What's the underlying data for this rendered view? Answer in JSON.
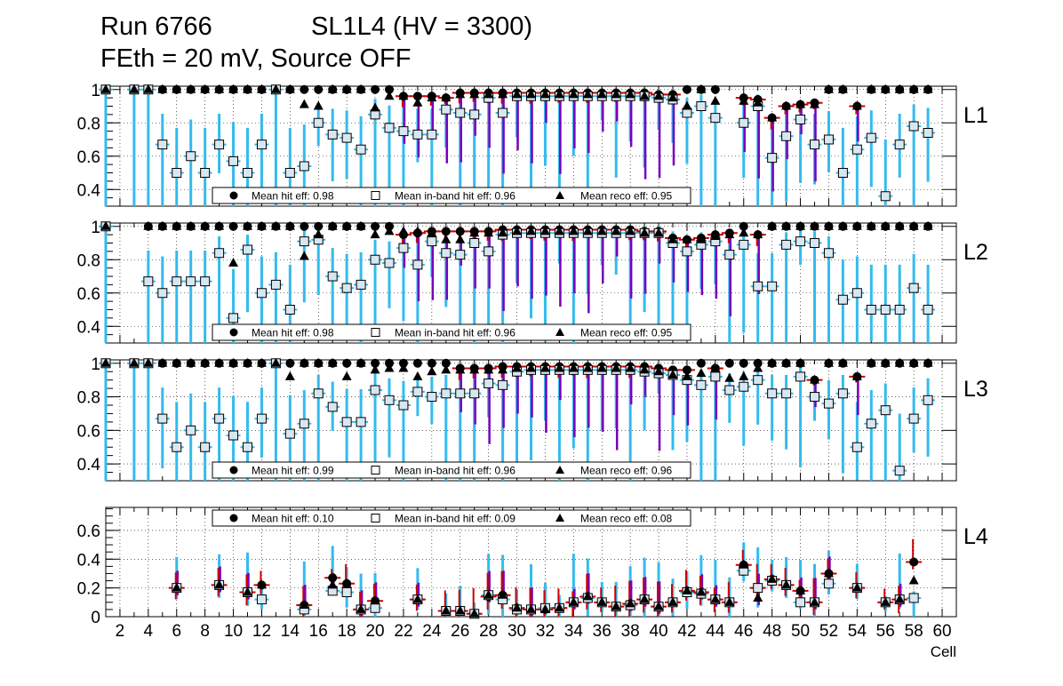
{
  "title": {
    "run": "Run 6766",
    "chamber": "SL1L4 (HV = 3300)",
    "conditions": "FEth = 20 mV, Source OFF"
  },
  "colors": {
    "hit": "#000000",
    "reco": "#000000",
    "band_err": "#33bbee",
    "mean_err": "#cc0000",
    "reco_err": "#7700bb",
    "grid": "#000000",
    "box_fill": "#d8e6f0"
  },
  "chart_data": [
    {
      "type": "scatter",
      "panel": "L1",
      "ylim": [
        0.3,
        1.02
      ],
      "yticks": [
        0.4,
        0.6,
        0.8,
        1
      ],
      "ytick_labels": [
        "0.4",
        "0.6",
        "0.8",
        "1"
      ],
      "legend": {
        "hit": "Mean hit  eff: 0.98",
        "band": "Mean in-band hit eff: 0.96",
        "reco": "Mean reco eff: 0.95"
      },
      "x": [
        1,
        3,
        4,
        5,
        6,
        7,
        8,
        9,
        10,
        11,
        12,
        13,
        14,
        15,
        16,
        17,
        18,
        19,
        20,
        21,
        22,
        23,
        24,
        25,
        26,
        27,
        28,
        29,
        30,
        31,
        32,
        33,
        34,
        35,
        36,
        37,
        38,
        39,
        40,
        41,
        42,
        43,
        44,
        46,
        47,
        48,
        49,
        50,
        51,
        52,
        53,
        54,
        55,
        56,
        57,
        58,
        59
      ],
      "series": [
        {
          "name": "Mean hit eff",
          "marker": "circle",
          "values": [
            1,
            1,
            1,
            1,
            1,
            1,
            1,
            1,
            1,
            1,
            1,
            1,
            1,
            1,
            1,
            1,
            1,
            1,
            1,
            1,
            0.96,
            0.96,
            0.96,
            0.95,
            0.98,
            0.98,
            0.98,
            0.98,
            0.98,
            0.98,
            0.98,
            0.98,
            0.98,
            0.98,
            0.98,
            0.98,
            0.98,
            0.98,
            0.97,
            0.97,
            1,
            1,
            1,
            0.95,
            0.94,
            0.83,
            0.9,
            0.91,
            0.92,
            1,
            1,
            0.9,
            1,
            1,
            1,
            1,
            1
          ]
        },
        {
          "name": "Mean in-band hit eff",
          "marker": "open-square",
          "values": [
            1,
            1,
            1,
            0.67,
            0.5,
            0.6,
            0.5,
            0.67,
            0.57,
            0.5,
            0.67,
            1,
            0.5,
            0.54,
            0.8,
            0.73,
            0.71,
            0.64,
            0.85,
            0.77,
            0.75,
            0.73,
            0.73,
            0.88,
            0.86,
            0.85,
            0.95,
            0.86,
            0.96,
            0.96,
            0.96,
            0.96,
            0.96,
            0.96,
            0.96,
            0.96,
            0.96,
            0.96,
            0.95,
            0.94,
            0.86,
            0.9,
            0.83,
            0.8,
            0.9,
            0.59,
            0.72,
            0.82,
            0.67,
            0.7,
            0.5,
            0.64,
            0.71,
            0.36,
            0.67,
            0.78,
            0.74
          ]
        },
        {
          "name": "Mean reco eff",
          "marker": "triangle",
          "values": [
            1,
            1,
            1,
            1,
            1,
            1,
            1,
            1,
            1,
            1,
            1,
            1,
            1,
            0.91,
            0.9,
            1,
            1,
            1,
            0.89,
            0.96,
            0.96,
            0.92,
            0.95,
            0.95,
            0.97,
            0.97,
            0.97,
            0.97,
            0.97,
            0.97,
            0.97,
            0.97,
            0.97,
            0.97,
            0.97,
            0.97,
            0.97,
            0.96,
            0.96,
            0.95,
            0.9,
            1,
            0.93,
            0.93,
            0.92,
            0.83,
            0.9,
            0.91,
            0.91,
            1,
            1,
            0.9,
            1,
            1,
            1,
            1,
            1
          ]
        }
      ]
    },
    {
      "type": "scatter",
      "panel": "L2",
      "ylim": [
        0.3,
        1.02
      ],
      "yticks": [
        0.4,
        0.6,
        0.8,
        1
      ],
      "ytick_labels": [
        "0.4",
        "0.6",
        "0.8",
        "1"
      ],
      "legend": {
        "hit": "Mean hit  eff: 0.98",
        "band": "Mean in-band hit eff: 0.96",
        "reco": "Mean reco eff: 0.95"
      },
      "x": [
        1,
        4,
        5,
        6,
        7,
        8,
        9,
        10,
        11,
        12,
        13,
        14,
        15,
        16,
        17,
        18,
        19,
        20,
        21,
        22,
        23,
        24,
        25,
        26,
        27,
        28,
        29,
        30,
        31,
        32,
        33,
        34,
        35,
        36,
        37,
        38,
        39,
        40,
        41,
        42,
        43,
        44,
        45,
        46,
        47,
        48,
        49,
        50,
        51,
        52,
        53,
        54,
        55,
        56,
        57,
        58,
        59
      ],
      "series": [
        {
          "name": "Mean hit eff",
          "marker": "circle",
          "values": [
            1,
            1,
            1,
            1,
            1,
            1,
            1,
            1,
            1,
            1,
            1,
            1,
            1,
            1,
            1,
            1,
            1,
            1,
            1,
            0.95,
            0.96,
            0.97,
            0.97,
            0.97,
            0.97,
            0.97,
            0.98,
            0.98,
            0.98,
            0.98,
            0.98,
            0.98,
            0.98,
            0.98,
            0.98,
            0.98,
            0.97,
            0.97,
            0.93,
            0.92,
            0.93,
            0.95,
            0.96,
            1,
            0.95,
            1,
            1,
            1,
            1,
            1,
            1,
            1,
            1,
            1,
            1,
            1,
            1
          ]
        },
        {
          "name": "Mean in-band hit eff",
          "marker": "open-square",
          "values": [
            1,
            0.67,
            0.6,
            0.67,
            0.67,
            0.67,
            0.84,
            0.45,
            0.86,
            0.6,
            0.65,
            0.5,
            0.91,
            0.92,
            0.7,
            0.63,
            0.65,
            0.8,
            0.78,
            0.87,
            0.77,
            0.91,
            0.84,
            0.83,
            0.9,
            0.85,
            0.95,
            0.96,
            0.96,
            0.96,
            0.96,
            0.96,
            0.96,
            0.96,
            0.96,
            0.96,
            0.96,
            0.96,
            0.9,
            0.85,
            0.89,
            0.91,
            0.83,
            0.89,
            0.64,
            0.64,
            0.89,
            0.91,
            0.9,
            0.84,
            0.56,
            0.6,
            0.5,
            0.5,
            0.5,
            0.63,
            0.5
          ]
        },
        {
          "name": "Mean reco eff",
          "marker": "triangle",
          "values": [
            1,
            1,
            1,
            1,
            1,
            1,
            1,
            0.78,
            1,
            1,
            1,
            1,
            0.82,
            0.95,
            1,
            1,
            1,
            0.95,
            0.97,
            0.97,
            0.97,
            0.96,
            0.92,
            0.92,
            0.96,
            0.96,
            0.96,
            0.97,
            0.97,
            0.97,
            0.97,
            0.97,
            0.97,
            0.97,
            0.97,
            0.97,
            0.96,
            0.96,
            0.92,
            0.92,
            0.92,
            0.94,
            0.95,
            0.96,
            0.95,
            1,
            1,
            1,
            1,
            1,
            1,
            1,
            1,
            1,
            1,
            1,
            1
          ]
        }
      ]
    },
    {
      "type": "scatter",
      "panel": "L3",
      "ylim": [
        0.3,
        1.02
      ],
      "yticks": [
        0.4,
        0.6,
        0.8,
        1
      ],
      "ytick_labels": [
        "0.4",
        "0.6",
        "0.8",
        "1"
      ],
      "legend": {
        "hit": "Mean hit  eff: 0.99",
        "band": "Mean in-band hit eff: 0.96",
        "reco": "Mean reco eff: 0.96"
      },
      "x": [
        1,
        3,
        4,
        5,
        6,
        7,
        8,
        9,
        10,
        11,
        12,
        13,
        14,
        15,
        16,
        17,
        18,
        19,
        20,
        21,
        22,
        23,
        24,
        25,
        26,
        27,
        28,
        29,
        30,
        31,
        32,
        33,
        34,
        35,
        36,
        37,
        38,
        39,
        40,
        41,
        42,
        43,
        44,
        45,
        46,
        47,
        48,
        49,
        50,
        51,
        52,
        53,
        54,
        55,
        56,
        57,
        58,
        59
      ],
      "series": [
        {
          "name": "Mean hit eff",
          "marker": "circle",
          "values": [
            1,
            1,
            1,
            1,
            1,
            1,
            1,
            1,
            1,
            1,
            1,
            1,
            1,
            1,
            1,
            1,
            1,
            1,
            1,
            1,
            1,
            1,
            1,
            1,
            0.97,
            0.97,
            0.97,
            0.98,
            0.98,
            0.98,
            0.98,
            0.98,
            0.98,
            0.98,
            0.98,
            0.98,
            0.98,
            0.98,
            0.97,
            0.96,
            0.96,
            1,
            0.97,
            1,
            1,
            1,
            1,
            1,
            1,
            0.9,
            1,
            1,
            0.92,
            1,
            1,
            1,
            1,
            1
          ]
        },
        {
          "name": "Mean in-band hit eff",
          "marker": "open-square",
          "values": [
            1,
            1,
            1,
            0.67,
            0.5,
            0.6,
            0.5,
            0.67,
            0.57,
            0.5,
            0.67,
            1,
            0.58,
            0.64,
            0.82,
            0.74,
            0.65,
            0.65,
            0.84,
            0.78,
            0.75,
            0.83,
            0.8,
            0.82,
            0.82,
            0.82,
            0.88,
            0.87,
            0.95,
            0.96,
            0.96,
            0.96,
            0.96,
            0.96,
            0.96,
            0.96,
            0.96,
            0.95,
            0.94,
            0.93,
            0.9,
            0.87,
            0.92,
            0.84,
            0.86,
            0.9,
            0.82,
            0.82,
            0.92,
            0.8,
            0.76,
            0.82,
            0.5,
            0.64,
            0.72,
            0.36,
            0.67,
            0.78
          ]
        },
        {
          "name": "Mean reco eff",
          "marker": "triangle",
          "values": [
            1,
            1,
            1,
            1,
            1,
            1,
            1,
            1,
            1,
            1,
            1,
            1,
            0.92,
            1,
            1,
            1,
            0.92,
            1,
            0.96,
            0.97,
            0.97,
            0.92,
            0.95,
            0.96,
            0.96,
            0.96,
            0.96,
            0.96,
            0.97,
            0.97,
            0.97,
            0.97,
            0.97,
            0.97,
            0.97,
            0.97,
            0.97,
            0.96,
            0.95,
            0.93,
            0.92,
            0.94,
            0.97,
            0.91,
            0.92,
            0.97,
            1,
            1,
            1,
            0.9,
            1,
            1,
            0.92,
            1,
            1,
            1,
            1,
            1
          ]
        }
      ]
    },
    {
      "type": "scatter",
      "panel": "L4",
      "xlabel": "Cell",
      "xlim": [
        1,
        61
      ],
      "ylim": [
        0,
        0.76
      ],
      "yticks": [
        0,
        0.2,
        0.4,
        0.6
      ],
      "ytick_labels": [
        "0",
        "0.2",
        "0.4",
        "0.6"
      ],
      "xticks": [
        2,
        4,
        6,
        8,
        10,
        12,
        14,
        16,
        18,
        20,
        22,
        24,
        26,
        28,
        30,
        32,
        34,
        36,
        38,
        40,
        42,
        44,
        46,
        48,
        50,
        52,
        54,
        56,
        58,
        60
      ],
      "xtick_labels": [
        "2",
        "4",
        "6",
        "8",
        "10",
        "12",
        "14",
        "16",
        "18",
        "20",
        "22",
        "24",
        "26",
        "28",
        "30",
        "32",
        "34",
        "36",
        "38",
        "40",
        "42",
        "44",
        "46",
        "48",
        "50",
        "52",
        "54",
        "56",
        "58",
        "60"
      ],
      "legend": {
        "hit": "Mean hit  eff: 0.10",
        "band": "Mean in-band hit eff: 0.09",
        "reco": "Mean reco eff: 0.08"
      },
      "x": [
        6,
        9,
        11,
        12,
        15,
        17,
        18,
        19,
        20,
        23,
        25,
        26,
        27,
        28,
        29,
        30,
        31,
        32,
        33,
        34,
        35,
        36,
        37,
        38,
        39,
        40,
        41,
        42,
        43,
        44,
        45,
        46,
        47,
        48,
        49,
        50,
        51,
        52,
        54,
        56,
        57,
        58
      ],
      "series": [
        {
          "name": "Mean hit eff",
          "marker": "circle",
          "values": [
            0.2,
            0.22,
            0.17,
            0.22,
            0.08,
            0.27,
            0.23,
            0.05,
            0.11,
            0.12,
            0.04,
            0.04,
            0.02,
            0.14,
            0.15,
            0.06,
            0.05,
            0.05,
            0.06,
            0.1,
            0.14,
            0.1,
            0.07,
            0.09,
            0.12,
            0.07,
            0.1,
            0.18,
            0.17,
            0.12,
            0.1,
            0.36,
            0.2,
            0.26,
            0.22,
            0.18,
            0.1,
            0.3,
            0.2,
            0.1,
            0.12,
            0.38
          ]
        },
        {
          "name": "Mean in-band hit eff",
          "marker": "open-square",
          "values": [
            0.2,
            0.22,
            0.17,
            0.12,
            0.05,
            0.18,
            0.17,
            0.05,
            0.06,
            0.12,
            0.04,
            0.04,
            0.02,
            0.15,
            0.12,
            0.05,
            0.05,
            0.06,
            0.06,
            0.1,
            0.13,
            0.1,
            0.07,
            0.08,
            0.12,
            0.07,
            0.1,
            0.17,
            0.16,
            0.12,
            0.1,
            0.32,
            0.2,
            0.25,
            0.22,
            0.1,
            0.1,
            0.23,
            0.2,
            0.1,
            0.12,
            0.13
          ]
        },
        {
          "name": "Mean reco eff",
          "marker": "triangle",
          "values": [
            0.2,
            0.22,
            0.17,
            0.22,
            0.08,
            0.22,
            0.23,
            0.05,
            0.11,
            0.12,
            0.04,
            0.04,
            0.02,
            0.15,
            0.15,
            0.06,
            0.05,
            0.05,
            0.06,
            0.1,
            0.14,
            0.1,
            0.07,
            0.09,
            0.12,
            0.07,
            0.1,
            0.18,
            0.17,
            0.12,
            0.1,
            0.36,
            0.13,
            0.26,
            0.22,
            0.18,
            0.1,
            0.3,
            0.2,
            0.1,
            0.12,
            0.25
          ]
        }
      ]
    }
  ]
}
